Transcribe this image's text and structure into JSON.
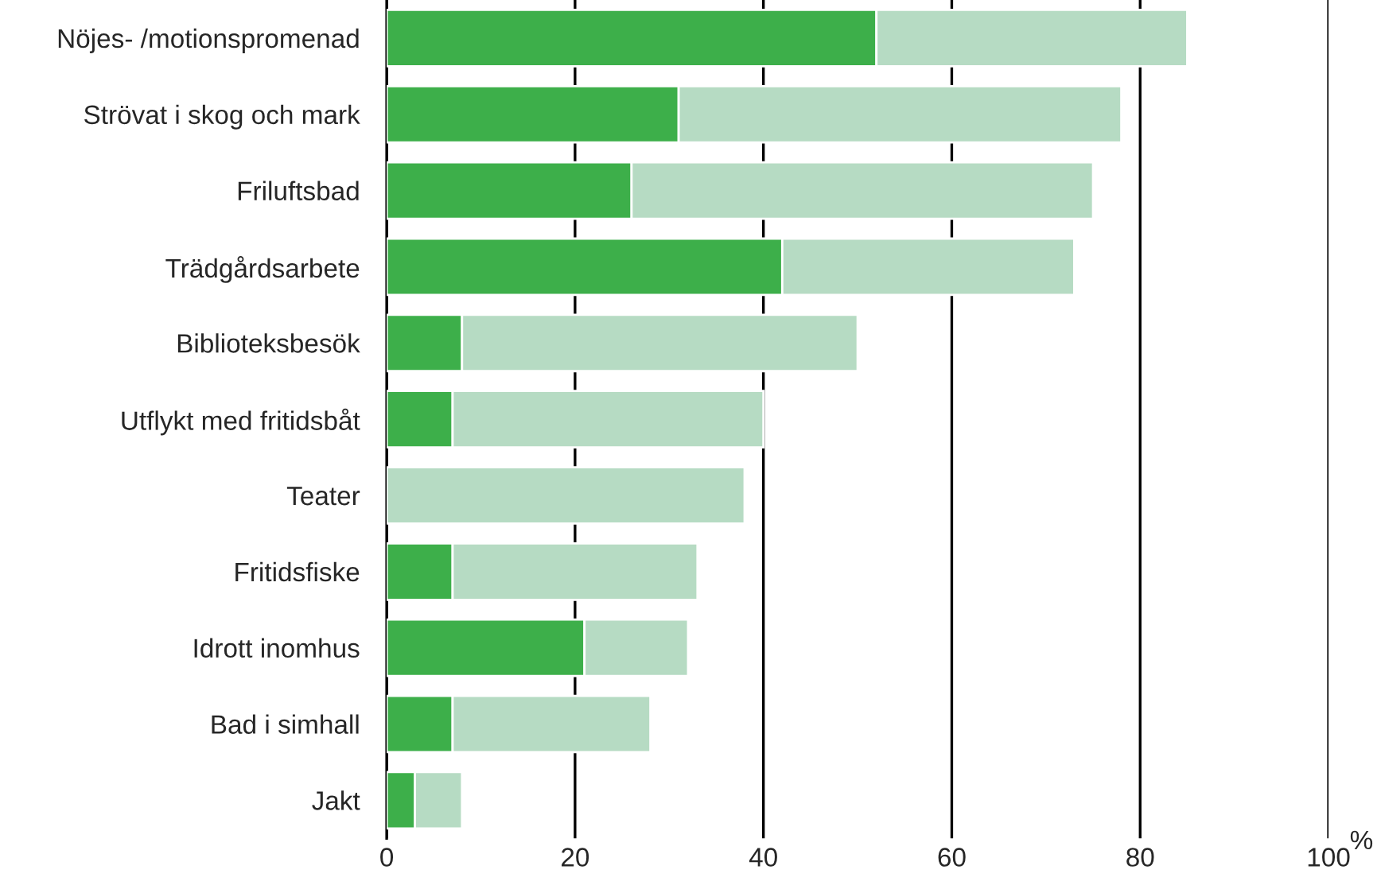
{
  "chart_data": {
    "type": "bar",
    "orientation": "horizontal",
    "stacked": true,
    "xlabel": "%",
    "categories": [
      "Nöjes- /motionspromenad",
      "Strövat i skog och mark",
      "Friluftsbad",
      "Trädgårdsarbete",
      "Biblioteksbesök",
      "Utflykt med fritidsbåt",
      "Teater",
      "Fritidsfiske",
      "Idrott inomhus",
      "Bad i simhall",
      "Jakt"
    ],
    "series": [
      {
        "color": "#3daf4a",
        "values": [
          52,
          31,
          26,
          42,
          8,
          7,
          0,
          7,
          21,
          7,
          3
        ]
      },
      {
        "color": "#b6dbc3",
        "values": [
          33,
          47,
          49,
          31,
          42,
          33,
          38,
          26,
          11,
          21,
          5
        ]
      }
    ],
    "xlim": [
      0,
      100
    ],
    "xticks": [
      0,
      20,
      40,
      60,
      80,
      100
    ],
    "grid": "x",
    "legend": false
  }
}
